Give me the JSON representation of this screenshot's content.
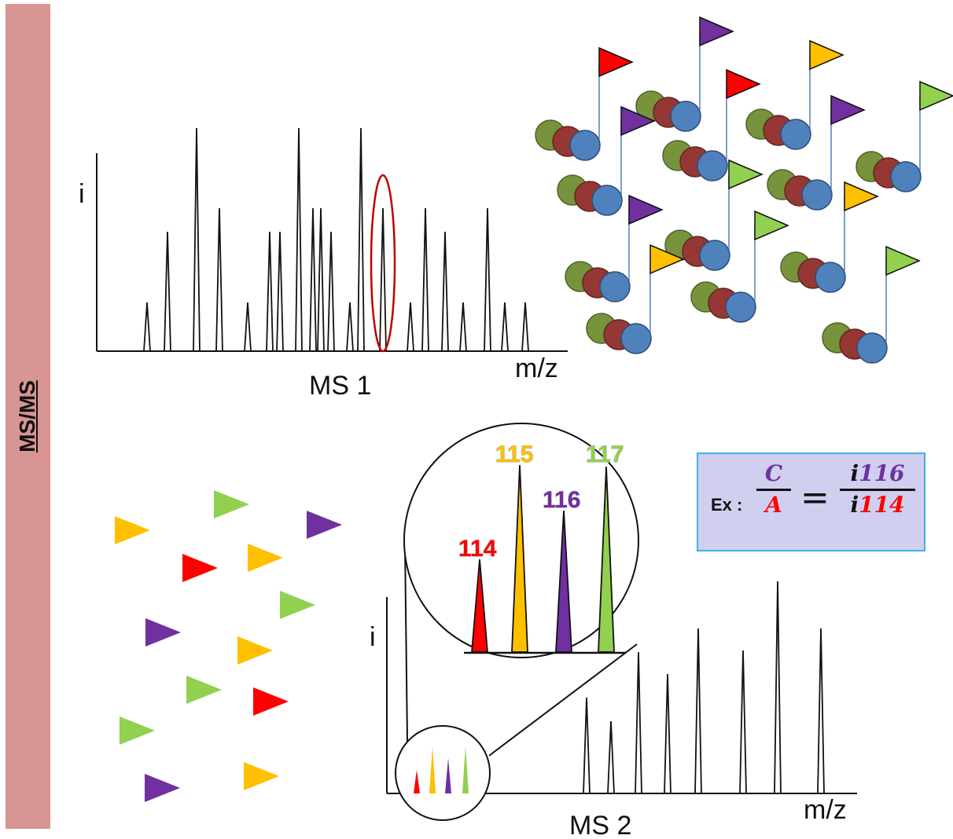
{
  "side_label": "MS/MS",
  "ms1": {
    "caption": "MS 1",
    "y_label": "i",
    "x_label": "m/z"
  },
  "ms2": {
    "caption": "MS 2",
    "y_label": "i",
    "x_label": "m/z"
  },
  "reporters": [
    {
      "label": "114",
      "color": "#ff0000"
    },
    {
      "label": "115",
      "color": "#ffc000"
    },
    {
      "label": "116",
      "color": "#7030a0"
    },
    {
      "label": "117",
      "color": "#92d050"
    }
  ],
  "formula": {
    "prefix": "Ex :",
    "left_numerator": "C",
    "left_denominator": "A",
    "equals": "=",
    "right_numerator_italic": "i",
    "right_numerator_value": "116",
    "right_denominator_italic": "i",
    "right_denominator_value": "114"
  },
  "colors": {
    "side_bar": "#d99594",
    "ion_selection": "#c00000",
    "molecule_green": "#77933c",
    "molecule_red": "#953735",
    "molecule_blue": "#4f81bd",
    "flag_pole": "#4f81bd"
  }
}
